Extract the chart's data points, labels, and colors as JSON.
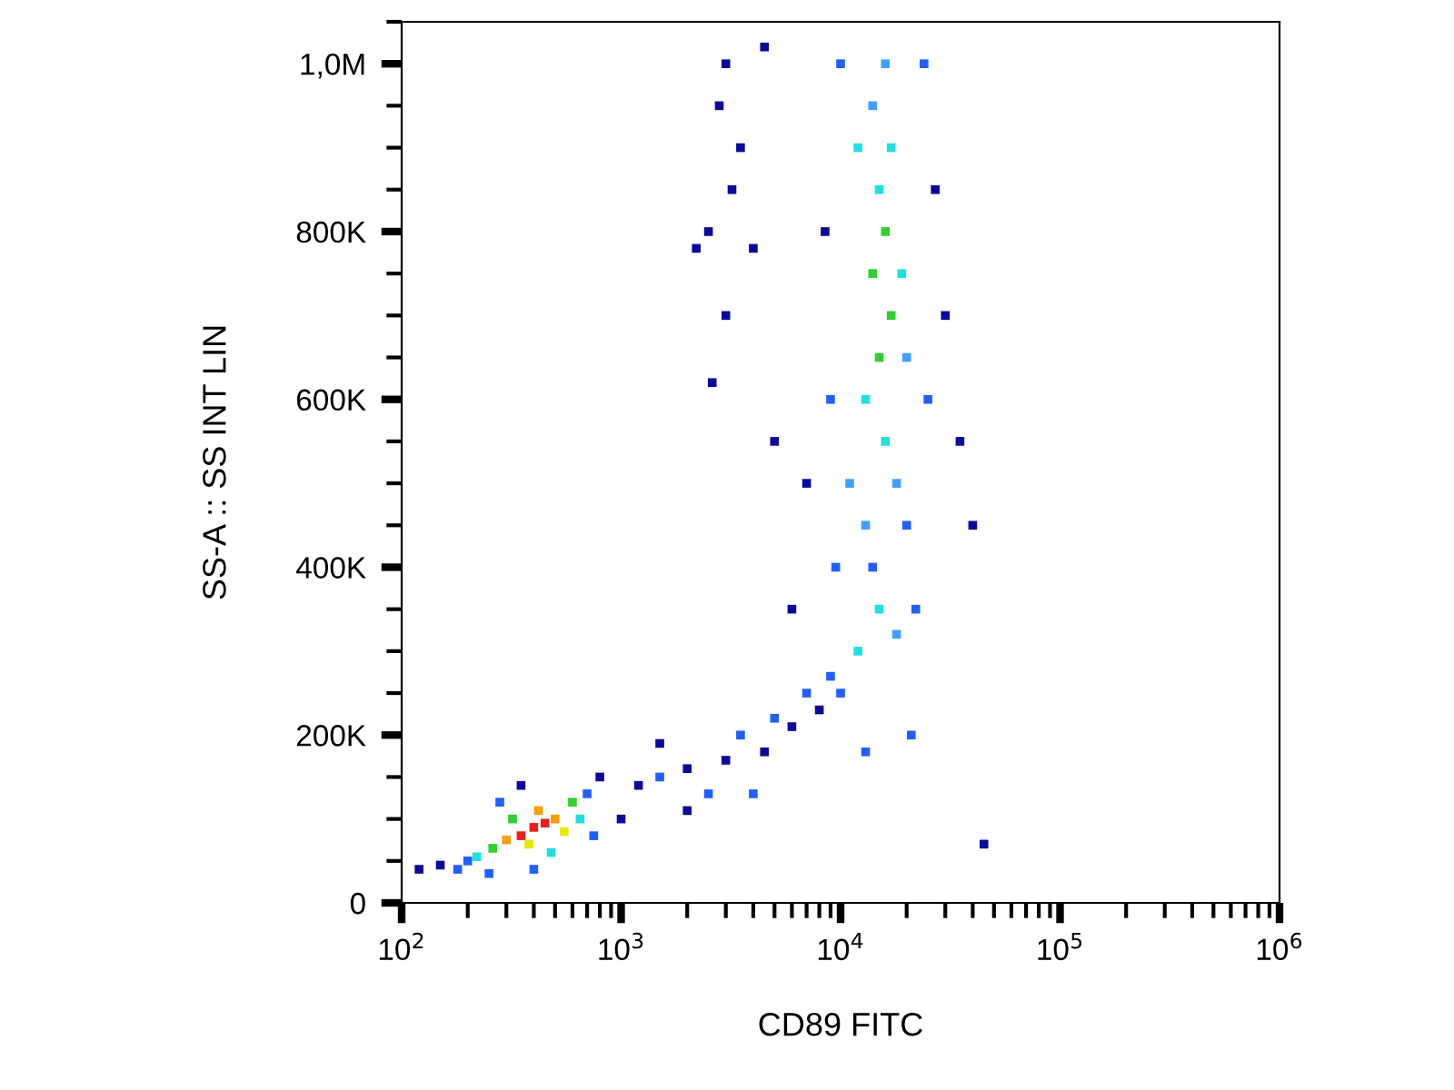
{
  "chart_data": {
    "type": "scatter",
    "xlabel": "CD89 FITC",
    "ylabel": "SS-A :: SS INT LIN",
    "log": "x",
    "grid": false,
    "marker": "square",
    "xlim": [
      100,
      1000000
    ],
    "ylim": [
      0,
      1050000
    ],
    "xticks": [
      {
        "value": 100,
        "label": "10$^{2}$"
      },
      {
        "value": 1000,
        "label": "10$^{3}$"
      },
      {
        "value": 10000,
        "label": "10$^{4}$"
      },
      {
        "value": 100000,
        "label": "10$^{5}$"
      },
      {
        "value": 1000000,
        "label": "10$^{6}$"
      }
    ],
    "yticks": [
      0,
      {
        "value": 200000,
        "label": "200K"
      },
      {
        "value": 400000,
        "label": "400K"
      },
      {
        "value": 600000,
        "label": "600K"
      },
      {
        "value": 800000,
        "label": "800K"
      },
      {
        "value": 1000000,
        "label": "1,0M"
      }
    ],
    "series": [
      {
        "x": [
          400,
          450,
          350,
          500,
          300,
          420,
          380,
          550,
          260,
          600,
          320,
          480,
          220,
          650,
          200,
          700,
          180,
          280,
          750,
          150,
          120,
          800,
          350,
          400,
          250,
          1000,
          1200,
          1500,
          2000,
          2500,
          3000,
          3500,
          4500,
          5000,
          6000,
          7000,
          8000,
          2000,
          1500,
          4000,
          9000,
          10000,
          12000,
          15000,
          18000,
          14000,
          20000,
          11000,
          16000,
          13000,
          15000,
          17000,
          14000,
          16000,
          15000,
          17000,
          14000,
          16000,
          9000,
          25000,
          8500,
          27000,
          10000,
          24000,
          9500,
          22000,
          21000,
          13000,
          30000,
          35000,
          40000,
          7000,
          6000,
          45000,
          12000,
          19000,
          13000,
          18000,
          20000,
          3000,
          2800,
          3500,
          2500,
          3200,
          4000,
          3000,
          2200,
          4500,
          2600,
          5000
        ],
        "values": [
          90000,
          95000,
          80000,
          100000,
          75000,
          110000,
          70000,
          85000,
          65000,
          120000,
          100000,
          60000,
          55000,
          100000,
          50000,
          130000,
          40000,
          120000,
          80000,
          45000,
          40000,
          150000,
          140000,
          40000,
          35000,
          100000,
          140000,
          150000,
          160000,
          130000,
          170000,
          200000,
          180000,
          220000,
          210000,
          250000,
          230000,
          110000,
          190000,
          130000,
          270000,
          250000,
          300000,
          350000,
          320000,
          400000,
          450000,
          500000,
          550000,
          600000,
          650000,
          700000,
          750000,
          800000,
          850000,
          900000,
          950000,
          1000000,
          600000,
          600000,
          800000,
          850000,
          1000000,
          1000000,
          400000,
          350000,
          200000,
          180000,
          700000,
          550000,
          450000,
          500000,
          350000,
          70000,
          900000,
          750000,
          450000,
          500000,
          650000,
          1000000,
          950000,
          900000,
          800000,
          850000,
          780000,
          700000,
          780000,
          1020000,
          620000,
          550000
        ],
        "colors": [
          "#e8201a",
          "#e8201a",
          "#e8201a",
          "#f7a000",
          "#f7a000",
          "#f7a000",
          "#e8e800",
          "#e8e800",
          "#30d030",
          "#30d030",
          "#30d030",
          "#20e0e0",
          "#20e0e0",
          "#20e0e0",
          "#2060ff",
          "#2060ff",
          "#2060ff",
          "#2060ff",
          "#2060ff",
          "#0a0a9a",
          "#0a0a9a",
          "#0a0a9a",
          "#0a0a9a",
          "#2060ff",
          "#2060ff",
          "#0a0a9a",
          "#0a0a9a",
          "#2060ff",
          "#0a0a9a",
          "#2060ff",
          "#0a0a9a",
          "#2060ff",
          "#0a0a9a",
          "#2060ff",
          "#0a0a9a",
          "#2060ff",
          "#0a0a9a",
          "#0a0a9a",
          "#0a0a9a",
          "#2060ff",
          "#2060ff",
          "#2060ff",
          "#20e0e0",
          "#20e0e0",
          "#40a0ff",
          "#2060ff",
          "#2060ff",
          "#40a0ff",
          "#20e0e0",
          "#20e0e0",
          "#30d030",
          "#30d030",
          "#30d030",
          "#30d030",
          "#20e0e0",
          "#20e0e0",
          "#40a0ff",
          "#40a0ff",
          "#2060ff",
          "#2060ff",
          "#0a0a9a",
          "#0a0a9a",
          "#2060ff",
          "#2060ff",
          "#2060ff",
          "#2060ff",
          "#2060ff",
          "#2060ff",
          "#0a0a9a",
          "#0a0a9a",
          "#0a0a9a",
          "#0a0a9a",
          "#0a0a9a",
          "#0a0a9a",
          "#20e0e0",
          "#20e0e0",
          "#40a0ff",
          "#40a0ff",
          "#40a0ff",
          "#0a0a9a",
          "#0a0a9a",
          "#0a0a9a",
          "#0a0a9a",
          "#0a0a9a",
          "#0a0a9a",
          "#0a0a9a",
          "#0a0a9a",
          "#0a0a9a",
          "#0a0a9a",
          "#0a0a9a"
        ]
      }
    ]
  }
}
